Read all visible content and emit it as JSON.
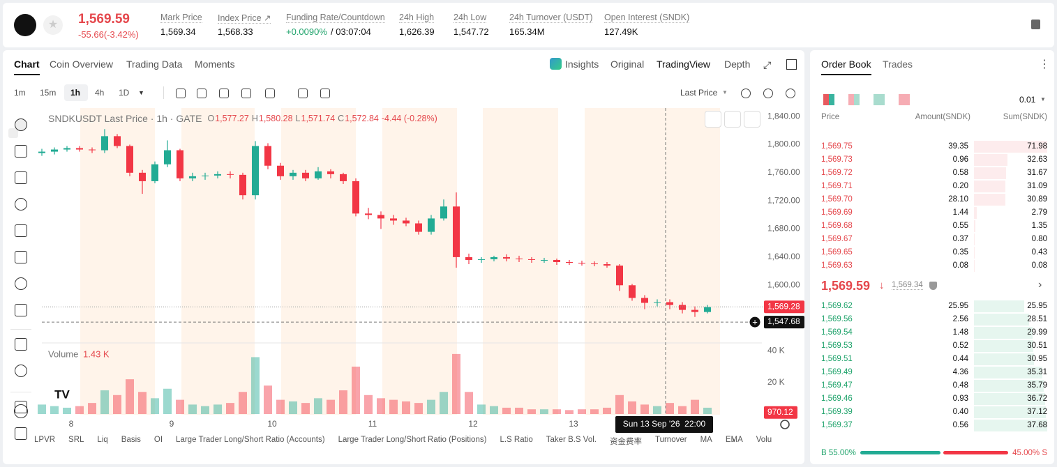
{
  "header": {
    "price": "1,569.59",
    "change": "-55.66(-3.42%)",
    "stats": [
      {
        "label": "Mark Price",
        "value": "1,569.34"
      },
      {
        "label": "Index Price ↗",
        "value": "1,568.33"
      },
      {
        "label": "Funding Rate/Countdown",
        "value": "+0.0090%",
        "extra": "/ 03:07:04"
      },
      {
        "label": "24h High",
        "value": "1,626.39"
      },
      {
        "label": "24h Low",
        "value": "1,547.72"
      },
      {
        "label": "24h Turnover (USDT)",
        "value": "165.34M"
      },
      {
        "label": "Open Interest (SNDK)",
        "value": "127.49K"
      }
    ]
  },
  "tabs": [
    "Chart",
    "Coin Overview",
    "Trading Data",
    "Moments"
  ],
  "view_tabs": [
    "Insights",
    "Original",
    "TradingView",
    "Depth"
  ],
  "intervals": [
    "1m",
    "15m",
    "1h",
    "4h",
    "1D"
  ],
  "price_source": "Last Price",
  "legend": {
    "title": "SNDKUSDT Last Price · 1h · GATE",
    "ohlc": [
      {
        "label": "O",
        "value": "1,577.27"
      },
      {
        "label": "H",
        "value": "1,580.28"
      },
      {
        "label": "L",
        "value": "1,571.74"
      },
      {
        "label": "C",
        "value": "1,572.84"
      }
    ],
    "change": "-4.44 (-0.28%)"
  },
  "chart_data": {
    "type": "candlestick",
    "up_color": "#22ab94",
    "down_color": "#f23645",
    "x": [
      0,
      3,
      6,
      9,
      12,
      15,
      18,
      21,
      24,
      27,
      30,
      33,
      36,
      39,
      42,
      45,
      48,
      51,
      54,
      57,
      60,
      63,
      66,
      69,
      72,
      75,
      78,
      81,
      84,
      87,
      90,
      93,
      96,
      99,
      102,
      105,
      108,
      111,
      114,
      117,
      120,
      123,
      126,
      129,
      132,
      135,
      138,
      141,
      144,
      147,
      150,
      153,
      156,
      159
    ],
    "open": [
      1788,
      1790,
      1793,
      1795,
      1793,
      1792,
      1812,
      1798,
      1760,
      1748,
      1772,
      1792,
      1752,
      1755,
      1756,
      1758,
      1757,
      1728,
      1798,
      1770,
      1755,
      1760,
      1752,
      1762,
      1758,
      1748,
      1702,
      1700,
      1695,
      1692,
      1688,
      1676,
      1695,
      1712,
      1640,
      1636,
      1637,
      1640,
      1638,
      1637,
      1636,
      1636,
      1633,
      1632,
      1631,
      1630,
      1628,
      1600,
      1582,
      1575,
      1576,
      1572,
      1565,
      1562
    ],
    "high": [
      1794,
      1796,
      1798,
      1798,
      1796,
      1822,
      1815,
      1800,
      1764,
      1776,
      1806,
      1794,
      1760,
      1760,
      1762,
      1762,
      1760,
      1805,
      1802,
      1774,
      1764,
      1764,
      1768,
      1765,
      1760,
      1752,
      1710,
      1705,
      1700,
      1696,
      1692,
      1700,
      1722,
      1732,
      1645,
      1640,
      1642,
      1644,
      1642,
      1640,
      1639,
      1638,
      1636,
      1635,
      1634,
      1633,
      1630,
      1602,
      1586,
      1580,
      1580,
      1576,
      1570,
      1572
    ],
    "low": [
      1784,
      1786,
      1790,
      1790,
      1788,
      1788,
      1795,
      1755,
      1730,
      1745,
      1768,
      1748,
      1748,
      1750,
      1752,
      1752,
      1722,
      1722,
      1765,
      1750,
      1750,
      1748,
      1750,
      1752,
      1744,
      1698,
      1694,
      1680,
      1686,
      1684,
      1672,
      1672,
      1692,
      1625,
      1630,
      1632,
      1634,
      1634,
      1633,
      1632,
      1632,
      1629,
      1629,
      1628,
      1627,
      1625,
      1592,
      1578,
      1566,
      1570,
      1566,
      1560,
      1555,
      1560
    ],
    "close": [
      1790,
      1793,
      1795,
      1793,
      1792,
      1812,
      1798,
      1760,
      1748,
      1772,
      1792,
      1752,
      1755,
      1756,
      1758,
      1757,
      1728,
      1798,
      1770,
      1755,
      1760,
      1752,
      1762,
      1758,
      1748,
      1702,
      1700,
      1695,
      1692,
      1688,
      1676,
      1695,
      1712,
      1640,
      1636,
      1637,
      1640,
      1638,
      1637,
      1636,
      1636,
      1633,
      1632,
      1631,
      1630,
      1628,
      1600,
      1582,
      1575,
      1576,
      1572,
      1565,
      1562,
      1569
    ],
    "xlim": [
      0,
      172
    ],
    "xticks": [
      {
        "value": 7,
        "label": "8"
      },
      {
        "value": 31,
        "label": "9"
      },
      {
        "value": 55,
        "label": "10"
      },
      {
        "value": 79,
        "label": "11"
      },
      {
        "value": 103,
        "label": "12"
      },
      {
        "value": 127,
        "label": "13"
      }
    ],
    "ylim": [
      1520,
      1852
    ],
    "yticks": [
      {
        "value": 1840,
        "label": "1,840.00"
      },
      {
        "value": 1800,
        "label": "1,800.00"
      },
      {
        "value": 1760,
        "label": "1,760.00"
      },
      {
        "value": 1720,
        "label": "1,720.00"
      },
      {
        "value": 1680,
        "label": "1,680.00"
      },
      {
        "value": 1640,
        "label": "1,640.00"
      },
      {
        "value": 1600,
        "label": "1,600.00"
      }
    ],
    "grid": false,
    "last_price": {
      "value": 1569.28,
      "label": "1,569.28"
    },
    "crosshair_price": {
      "value": 1547.68,
      "label": "1,547.68"
    },
    "crosshair_time": {
      "value": 149,
      "label": "Sun 13 Sep '26  22:00"
    },
    "volume": {
      "title": "Volume",
      "value": "1.43 K",
      "values": [
        6000,
        5000,
        4000,
        5000,
        7000,
        15000,
        12000,
        22000,
        14000,
        10000,
        16000,
        9000,
        6000,
        5000,
        6000,
        7000,
        14000,
        36000,
        18000,
        9000,
        8000,
        7000,
        10000,
        9000,
        15000,
        30000,
        12000,
        10000,
        9000,
        8000,
        7000,
        9000,
        14000,
        38000,
        14000,
        6000,
        5000,
        4000,
        4000,
        3000,
        3000,
        3000,
        2500,
        3000,
        3000,
        4000,
        12000,
        8000,
        6000,
        5000,
        7000,
        5000,
        9000,
        4000
      ],
      "ylim": [
        0,
        45000
      ],
      "yticks": [
        {
          "value": 40000,
          "label": "40 K"
        },
        {
          "value": 20000,
          "label": "20 K"
        }
      ],
      "last": {
        "value": 970.12,
        "label": "970.12"
      }
    }
  },
  "indicators": [
    "LPVR",
    "SRL",
    "Liq",
    "Basis",
    "OI",
    "Large Trader Long/Short Ratio (Accounts)",
    "Large Trader Long/Short Ratio (Positions)",
    "L.S Ratio",
    "Taker B.S Vol.",
    "资金费率",
    "Turnover",
    "MA",
    "EMA",
    "Volu"
  ],
  "order_book": {
    "tabs": [
      "Order Book",
      "Trades"
    ],
    "precision": "0.01",
    "columns": [
      "Price",
      "Amount(SNDK)",
      "Sum(SNDK)"
    ],
    "asks": [
      [
        "1,569.75",
        "39.35",
        "71.98"
      ],
      [
        "1,569.73",
        "0.96",
        "32.63"
      ],
      [
        "1,569.72",
        "0.58",
        "31.67"
      ],
      [
        "1,569.71",
        "0.20",
        "31.09"
      ],
      [
        "1,569.70",
        "28.10",
        "30.89"
      ],
      [
        "1,569.69",
        "1.44",
        "2.79"
      ],
      [
        "1,569.68",
        "0.55",
        "1.35"
      ],
      [
        "1,569.67",
        "0.37",
        "0.80"
      ],
      [
        "1,569.65",
        "0.35",
        "0.43"
      ],
      [
        "1,569.63",
        "0.08",
        "0.08"
      ]
    ],
    "mid_price": "1,569.59",
    "mark_price": "1,569.34",
    "bids": [
      [
        "1,569.62",
        "25.95",
        "25.95"
      ],
      [
        "1,569.56",
        "2.56",
        "28.51"
      ],
      [
        "1,569.54",
        "1.48",
        "29.99"
      ],
      [
        "1,569.53",
        "0.52",
        "30.51"
      ],
      [
        "1,569.51",
        "0.44",
        "30.95"
      ],
      [
        "1,569.49",
        "4.36",
        "35.31"
      ],
      [
        "1,569.47",
        "0.48",
        "35.79"
      ],
      [
        "1,569.46",
        "0.93",
        "36.72"
      ],
      [
        "1,569.39",
        "0.40",
        "37.12"
      ],
      [
        "1,569.37",
        "0.56",
        "37.68"
      ]
    ],
    "buy": {
      "value": 55,
      "label": "B 55.00%"
    },
    "sell": {
      "value": 45,
      "label": "45.00% S"
    }
  }
}
